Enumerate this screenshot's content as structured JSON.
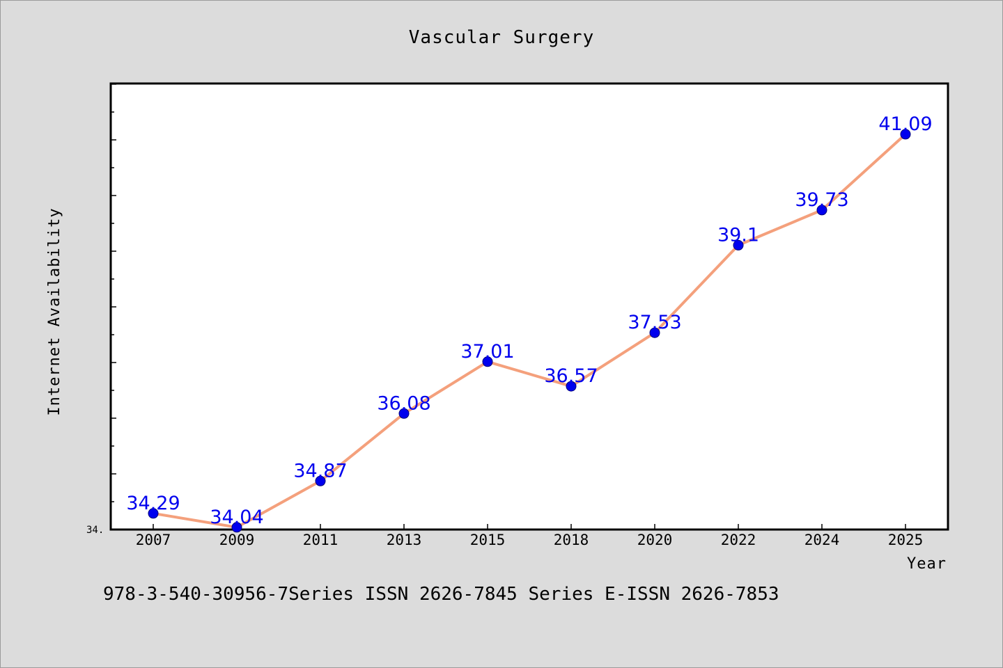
{
  "colors": {
    "background": "#dcdcdc",
    "plot_background": "#ffffff",
    "line": "#f4a07c",
    "marker": "#0000ee",
    "data_label": "#0000ee"
  },
  "footer": {
    "text": "978-3-540-30956-7Series ISSN 2626-7845 Series E-ISSN 2626-7853"
  },
  "chart_data": {
    "type": "line",
    "title": "Vascular Surgery",
    "xlabel": "Year",
    "ylabel": "Internet Availability",
    "categories": [
      "2007",
      "2009",
      "2011",
      "2013",
      "2015",
      "2018",
      "2020",
      "2022",
      "2024",
      "2025"
    ],
    "series": [
      {
        "values": [
          34.29,
          34.04,
          34.87,
          36.08,
          37.01,
          36.57,
          37.53,
          39.1,
          39.73,
          41.09
        ],
        "labels": [
          "34.29",
          "34.04",
          "34.87",
          "36.08",
          "37.01",
          "36.57",
          "37.53",
          "39.1",
          "39.73",
          "41.09"
        ]
      }
    ],
    "ylim": [
      34.0,
      42.0
    ],
    "y_tick_label": "34.",
    "grid": false,
    "legend": "none"
  }
}
